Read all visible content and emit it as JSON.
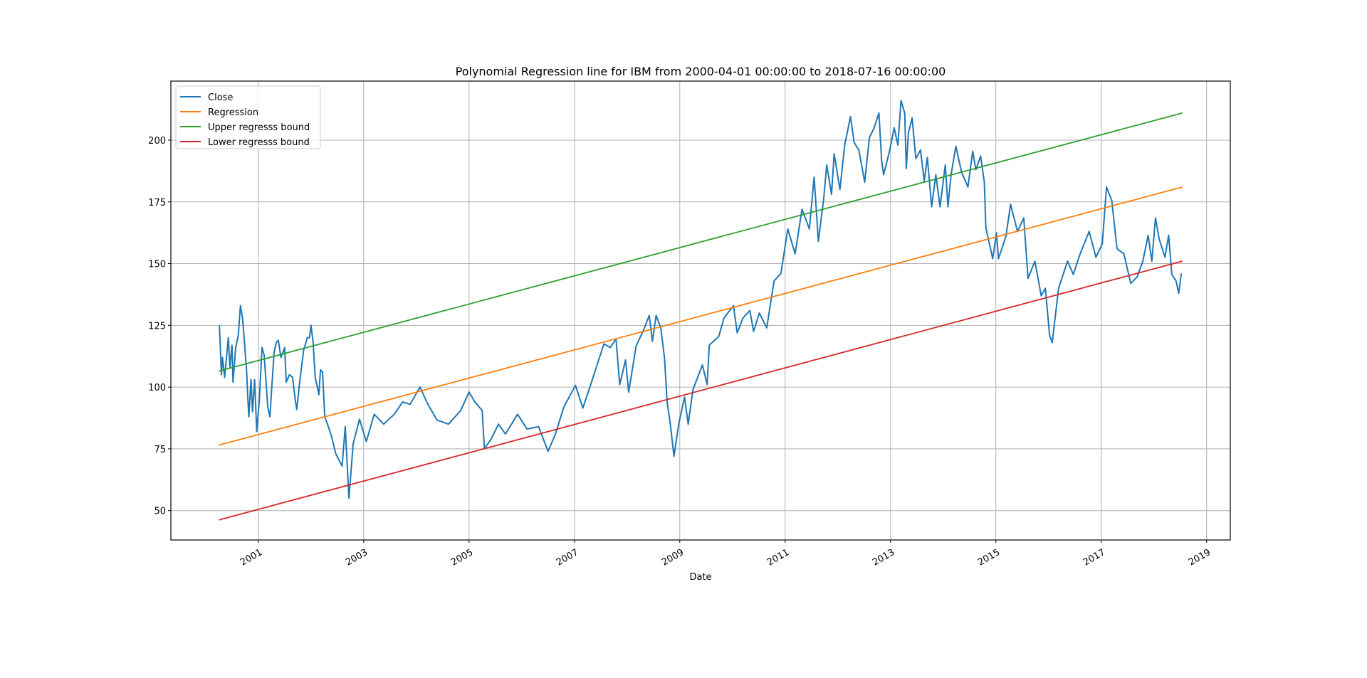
{
  "chart_data": {
    "type": "line",
    "title": "Polynomial Regression line for IBM from 2000-04-01 00:00:00 to 2018-07-16 00:00:00",
    "xlabel": "Date",
    "ylabel": "",
    "xlim": [
      1999.34,
      2019.45
    ],
    "ylim": [
      38.1,
      223.9
    ],
    "grid": true,
    "legend_placement": "upper-left",
    "xticks": [
      {
        "v": 2001,
        "label": "2001"
      },
      {
        "v": 2003,
        "label": "2003"
      },
      {
        "v": 2005,
        "label": "2005"
      },
      {
        "v": 2007,
        "label": "2007"
      },
      {
        "v": 2009,
        "label": "2009"
      },
      {
        "v": 2011,
        "label": "2011"
      },
      {
        "v": 2013,
        "label": "2013"
      },
      {
        "v": 2015,
        "label": "2015"
      },
      {
        "v": 2017,
        "label": "2017"
      },
      {
        "v": 2019,
        "label": "2019"
      }
    ],
    "yticks": [
      {
        "v": 50,
        "label": "50"
      },
      {
        "v": 75,
        "label": "75"
      },
      {
        "v": 100,
        "label": "100"
      },
      {
        "v": 125,
        "label": "125"
      },
      {
        "v": 150,
        "label": "150"
      },
      {
        "v": 175,
        "label": "175"
      },
      {
        "v": 200,
        "label": "200"
      }
    ],
    "series": [
      {
        "name": "Close",
        "color": "#1f77b4",
        "points": [
          [
            2000.26,
            125
          ],
          [
            2000.27,
            121
          ],
          [
            2000.3,
            105
          ],
          [
            2000.32,
            112
          ],
          [
            2000.36,
            104
          ],
          [
            2000.43,
            120
          ],
          [
            2000.46,
            108
          ],
          [
            2000.5,
            117
          ],
          [
            2000.52,
            102
          ],
          [
            2000.57,
            116
          ],
          [
            2000.62,
            121
          ],
          [
            2000.66,
            133
          ],
          [
            2000.7,
            128
          ],
          [
            2000.73,
            120
          ],
          [
            2000.78,
            106
          ],
          [
            2000.8,
            96
          ],
          [
            2000.82,
            88
          ],
          [
            2000.86,
            103
          ],
          [
            2000.89,
            90
          ],
          [
            2000.93,
            103
          ],
          [
            2000.97,
            82
          ],
          [
            2001.02,
            95
          ],
          [
            2001.07,
            116
          ],
          [
            2001.11,
            113
          ],
          [
            2001.18,
            92
          ],
          [
            2001.22,
            88
          ],
          [
            2001.25,
            98
          ],
          [
            2001.3,
            114
          ],
          [
            2001.34,
            118
          ],
          [
            2001.38,
            119
          ],
          [
            2001.43,
            112
          ],
          [
            2001.5,
            116
          ],
          [
            2001.53,
            102
          ],
          [
            2001.59,
            105
          ],
          [
            2001.65,
            104
          ],
          [
            2001.7,
            95
          ],
          [
            2001.73,
            91
          ],
          [
            2001.79,
            103
          ],
          [
            2001.86,
            115
          ],
          [
            2001.93,
            120
          ],
          [
            2001.97,
            120
          ],
          [
            2002.0,
            125
          ],
          [
            2002.04,
            118
          ],
          [
            2002.08,
            104
          ],
          [
            2002.13,
            99
          ],
          [
            2002.15,
            97
          ],
          [
            2002.18,
            107
          ],
          [
            2002.22,
            106
          ],
          [
            2002.26,
            88
          ],
          [
            2002.33,
            84
          ],
          [
            2002.39,
            80
          ],
          [
            2002.47,
            73
          ],
          [
            2002.59,
            68
          ],
          [
            2002.65,
            84
          ],
          [
            2002.72,
            55
          ],
          [
            2002.8,
            77
          ],
          [
            2002.92,
            87
          ],
          [
            2003.05,
            78
          ],
          [
            2003.2,
            89
          ],
          [
            2003.38,
            85
          ],
          [
            2003.58,
            89
          ],
          [
            2003.74,
            94
          ],
          [
            2003.88,
            93
          ],
          [
            2004.07,
            100
          ],
          [
            2004.21,
            93.4
          ],
          [
            2004.39,
            86.7
          ],
          [
            2004.61,
            85
          ],
          [
            2004.84,
            90.5
          ],
          [
            2005.0,
            98
          ],
          [
            2005.11,
            94
          ],
          [
            2005.25,
            90.5
          ],
          [
            2005.29,
            75
          ],
          [
            2005.42,
            79
          ],
          [
            2005.56,
            85
          ],
          [
            2005.69,
            81
          ],
          [
            2005.92,
            89
          ],
          [
            2006.1,
            83
          ],
          [
            2006.32,
            84
          ],
          [
            2006.5,
            74
          ],
          [
            2006.64,
            81
          ],
          [
            2006.8,
            92
          ],
          [
            2007.02,
            100.7
          ],
          [
            2007.16,
            91.5
          ],
          [
            2007.31,
            101
          ],
          [
            2007.4,
            107
          ],
          [
            2007.56,
            117.5
          ],
          [
            2007.68,
            116
          ],
          [
            2007.79,
            119.5
          ],
          [
            2007.86,
            101
          ],
          [
            2007.97,
            111
          ],
          [
            2008.03,
            98
          ],
          [
            2008.17,
            116.6
          ],
          [
            2008.31,
            123
          ],
          [
            2008.42,
            129
          ],
          [
            2008.48,
            118.5
          ],
          [
            2008.55,
            129
          ],
          [
            2008.64,
            124
          ],
          [
            2008.71,
            111.8
          ],
          [
            2008.76,
            94
          ],
          [
            2008.82,
            85
          ],
          [
            2008.89,
            72
          ],
          [
            2008.98,
            85
          ],
          [
            2009.09,
            96
          ],
          [
            2009.16,
            85
          ],
          [
            2009.25,
            99
          ],
          [
            2009.43,
            109
          ],
          [
            2009.52,
            101
          ],
          [
            2009.56,
            117
          ],
          [
            2009.74,
            120.5
          ],
          [
            2009.84,
            128
          ],
          [
            2010.02,
            133
          ],
          [
            2010.09,
            122
          ],
          [
            2010.2,
            128
          ],
          [
            2010.33,
            131
          ],
          [
            2010.4,
            122.5
          ],
          [
            2010.51,
            130
          ],
          [
            2010.65,
            124
          ],
          [
            2010.79,
            143
          ],
          [
            2010.92,
            146
          ],
          [
            2011.05,
            164
          ],
          [
            2011.19,
            154
          ],
          [
            2011.32,
            172
          ],
          [
            2011.46,
            164
          ],
          [
            2011.55,
            185
          ],
          [
            2011.63,
            159
          ],
          [
            2011.73,
            176
          ],
          [
            2011.79,
            190
          ],
          [
            2011.88,
            178
          ],
          [
            2011.93,
            194.5
          ],
          [
            2012.04,
            180
          ],
          [
            2012.13,
            198
          ],
          [
            2012.24,
            209.5
          ],
          [
            2012.31,
            199
          ],
          [
            2012.4,
            196
          ],
          [
            2012.51,
            183
          ],
          [
            2012.6,
            201
          ],
          [
            2012.69,
            205
          ],
          [
            2012.78,
            211
          ],
          [
            2012.83,
            192
          ],
          [
            2012.87,
            186
          ],
          [
            2012.98,
            195.5
          ],
          [
            2013.07,
            205
          ],
          [
            2013.14,
            198
          ],
          [
            2013.2,
            216
          ],
          [
            2013.27,
            211
          ],
          [
            2013.3,
            188.5
          ],
          [
            2013.34,
            203
          ],
          [
            2013.41,
            209
          ],
          [
            2013.48,
            192.5
          ],
          [
            2013.57,
            196
          ],
          [
            2013.64,
            183.5
          ],
          [
            2013.7,
            193
          ],
          [
            2013.78,
            173
          ],
          [
            2013.86,
            186
          ],
          [
            2013.94,
            173
          ],
          [
            2014.04,
            190
          ],
          [
            2014.09,
            173
          ],
          [
            2014.15,
            186
          ],
          [
            2014.24,
            197.5
          ],
          [
            2014.35,
            187
          ],
          [
            2014.47,
            181
          ],
          [
            2014.56,
            195.5
          ],
          [
            2014.62,
            188
          ],
          [
            2014.71,
            193.5
          ],
          [
            2014.78,
            183
          ],
          [
            2014.81,
            164.5
          ],
          [
            2014.94,
            152
          ],
          [
            2015.01,
            162.5
          ],
          [
            2015.05,
            152
          ],
          [
            2015.19,
            161
          ],
          [
            2015.28,
            174
          ],
          [
            2015.41,
            163
          ],
          [
            2015.53,
            168.5
          ],
          [
            2015.61,
            144
          ],
          [
            2015.74,
            151
          ],
          [
            2015.86,
            137
          ],
          [
            2015.94,
            140
          ],
          [
            2016.02,
            121
          ],
          [
            2016.07,
            118
          ],
          [
            2016.19,
            140
          ],
          [
            2016.36,
            151
          ],
          [
            2016.47,
            145.6
          ],
          [
            2016.6,
            154
          ],
          [
            2016.77,
            163
          ],
          [
            2016.9,
            152.6
          ],
          [
            2017.02,
            158
          ],
          [
            2017.1,
            181
          ],
          [
            2017.2,
            175.6
          ],
          [
            2017.3,
            156
          ],
          [
            2017.43,
            154
          ],
          [
            2017.56,
            142
          ],
          [
            2017.68,
            144.5
          ],
          [
            2017.79,
            151
          ],
          [
            2017.89,
            161.5
          ],
          [
            2017.96,
            151
          ],
          [
            2018.03,
            168.5
          ],
          [
            2018.1,
            160
          ],
          [
            2018.21,
            152.6
          ],
          [
            2018.28,
            161.5
          ],
          [
            2018.34,
            145.6
          ],
          [
            2018.42,
            143
          ],
          [
            2018.47,
            138
          ],
          [
            2018.52,
            146
          ]
        ]
      },
      {
        "name": "Regression",
        "color": "#ff7f0e",
        "points": [
          [
            2000.25,
            76.5
          ],
          [
            2018.54,
            181
          ]
        ]
      },
      {
        "name": "Upper regresss bound",
        "color": "#2ca02c",
        "points": [
          [
            2000.25,
            106.5
          ],
          [
            2018.54,
            211
          ]
        ]
      },
      {
        "name": "Lower regresss bound",
        "color": "#d62728",
        "points": [
          [
            2000.25,
            46.2
          ],
          [
            2018.54,
            151
          ]
        ]
      }
    ]
  }
}
